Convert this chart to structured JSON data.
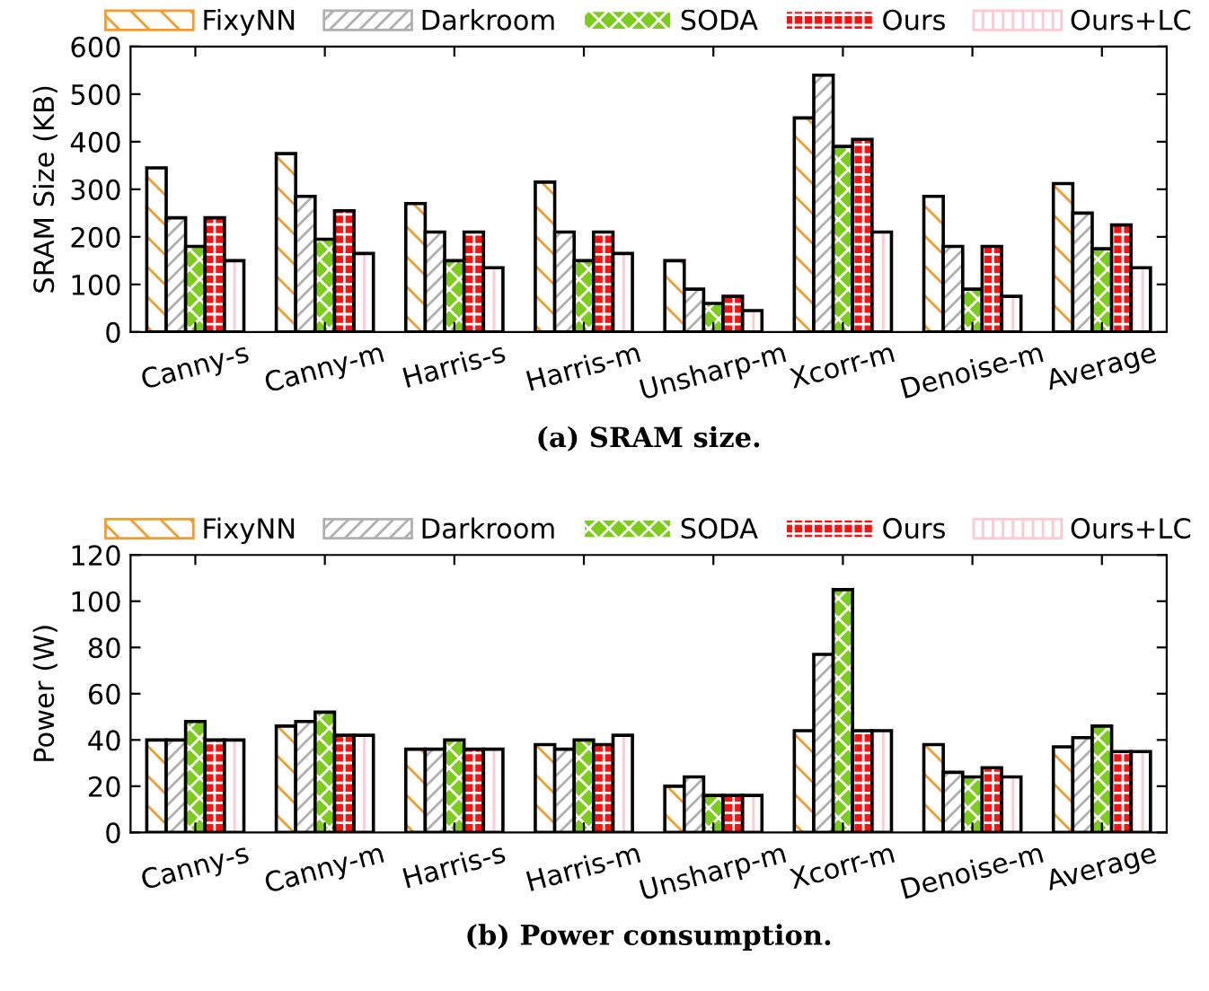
{
  "chart_data": [
    {
      "type": "bar",
      "title": "(a) SRAM size.",
      "ylabel": "SRAM Size (KB)",
      "categories": [
        "Canny-s",
        "Canny-m",
        "Harris-s",
        "Harris-m",
        "Unsharp-m",
        "Xcorr-m",
        "Denoise-m",
        "Average"
      ],
      "series": [
        {
          "name": "FixyNN",
          "color": "#f39c2a",
          "values": [
            345,
            375,
            270,
            315,
            150,
            450,
            285,
            312
          ]
        },
        {
          "name": "Darkroom",
          "color": "#b0b0b0",
          "values": [
            240,
            285,
            210,
            210,
            90,
            540,
            180,
            250
          ]
        },
        {
          "name": "SODA",
          "color": "#7ccc1c",
          "values": [
            180,
            195,
            150,
            150,
            60,
            390,
            90,
            175
          ]
        },
        {
          "name": "Ours",
          "color": "#ff1010",
          "values": [
            240,
            255,
            210,
            210,
            75,
            405,
            180,
            225
          ]
        },
        {
          "name": "Ours+LC",
          "color": "#ffc8d4",
          "values": [
            150,
            165,
            135,
            165,
            45,
            210,
            75,
            135
          ]
        }
      ],
      "ylim": [
        0,
        600
      ],
      "yticks": [
        0,
        100,
        200,
        300,
        400,
        500,
        600
      ],
      "legend": "top",
      "grid": false
    },
    {
      "type": "bar",
      "title": "(b) Power consumption.",
      "ylabel": "Power (W)",
      "categories": [
        "Canny-s",
        "Canny-m",
        "Harris-s",
        "Harris-m",
        "Unsharp-m",
        "Xcorr-m",
        "Denoise-m",
        "Average"
      ],
      "series": [
        {
          "name": "FixyNN",
          "color": "#f39c2a",
          "values": [
            40,
            46,
            36,
            38,
            20,
            44,
            38,
            37
          ]
        },
        {
          "name": "Darkroom",
          "color": "#b0b0b0",
          "values": [
            40,
            48,
            36,
            36,
            24,
            77,
            26,
            41
          ]
        },
        {
          "name": "SODA",
          "color": "#7ccc1c",
          "values": [
            48,
            52,
            40,
            40,
            16,
            105,
            24,
            46
          ]
        },
        {
          "name": "Ours",
          "color": "#ff1010",
          "values": [
            40,
            42,
            36,
            38,
            16,
            44,
            28,
            35
          ]
        },
        {
          "name": "Ours+LC",
          "color": "#ffc8d4",
          "values": [
            40,
            42,
            36,
            42,
            16,
            44,
            24,
            35
          ]
        }
      ],
      "ylim": [
        0,
        120
      ],
      "yticks": [
        0,
        20,
        40,
        60,
        80,
        100,
        120
      ],
      "legend": "top",
      "grid": false
    }
  ]
}
